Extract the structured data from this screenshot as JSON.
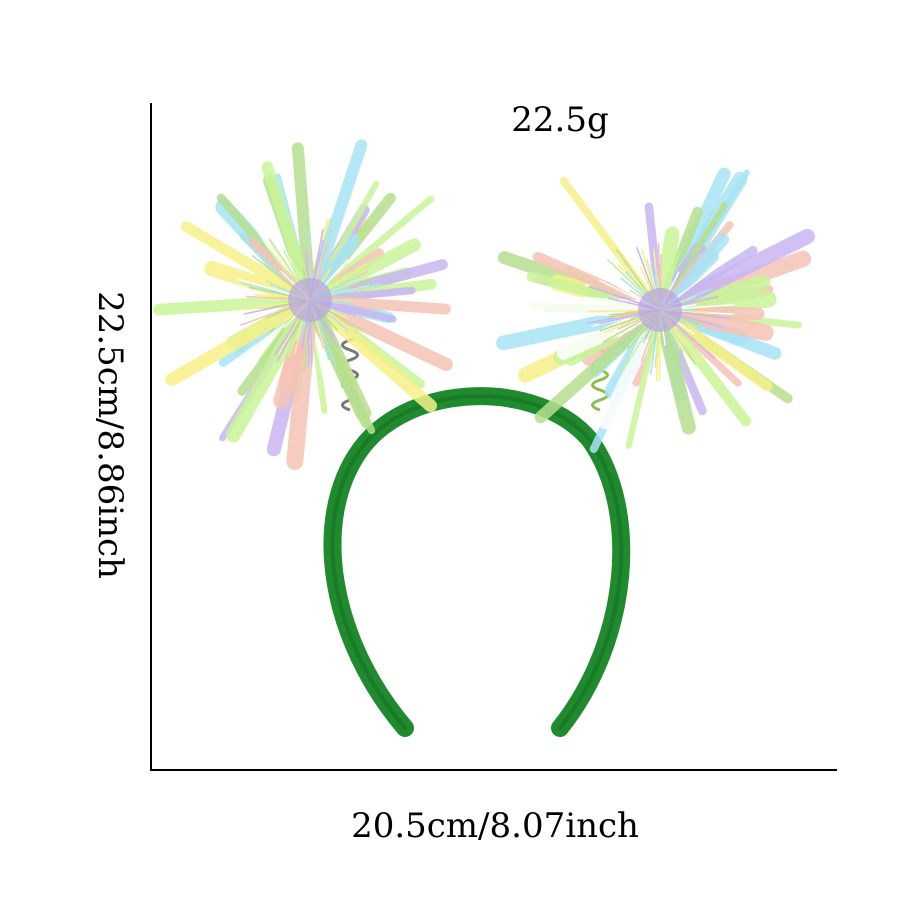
{
  "dimensions": {
    "weight": "22.5g",
    "width": "20.5cm/8.07inch",
    "height": "22.5cm/8.86inch"
  },
  "colors": {
    "headband": "#1f8a2e",
    "headband_dark": "#146b22",
    "tinsel": [
      "#f7f08a",
      "#a8e4f5",
      "#c9f59a",
      "#f6c4b6",
      "#c9b6f2",
      "#ffffff",
      "#b6e08f"
    ]
  }
}
